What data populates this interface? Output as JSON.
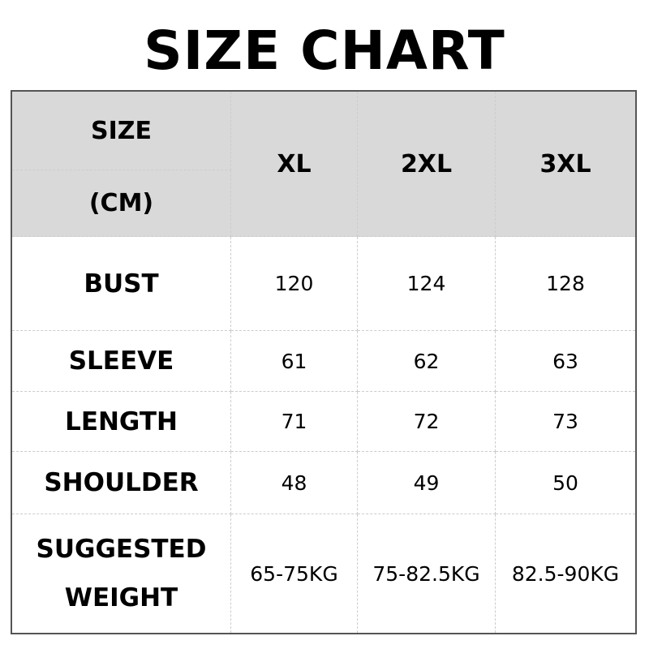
{
  "title": "SIZE CHART",
  "chart_data": {
    "type": "table",
    "header": {
      "label_line1": "SIZE",
      "label_line2": "(CM)",
      "columns": [
        "XL",
        "2XL",
        "3XL"
      ]
    },
    "header_background": "#d9d9d9",
    "rows": [
      {
        "label": "BUST",
        "values": [
          "120",
          "124",
          "128"
        ]
      },
      {
        "label": "SLEEVE",
        "values": [
          "61",
          "62",
          "63"
        ]
      },
      {
        "label": "LENGTH",
        "values": [
          "71",
          "72",
          "73"
        ]
      },
      {
        "label": "SHOULDER",
        "values": [
          "48",
          "49",
          "50"
        ]
      },
      {
        "label": "SUGGESTED WEIGHT",
        "label_line1": "SUGGESTED",
        "label_line2": "WEIGHT",
        "values": [
          "65-75KG",
          "75-82.5KG",
          "82.5-90KG"
        ]
      }
    ]
  }
}
